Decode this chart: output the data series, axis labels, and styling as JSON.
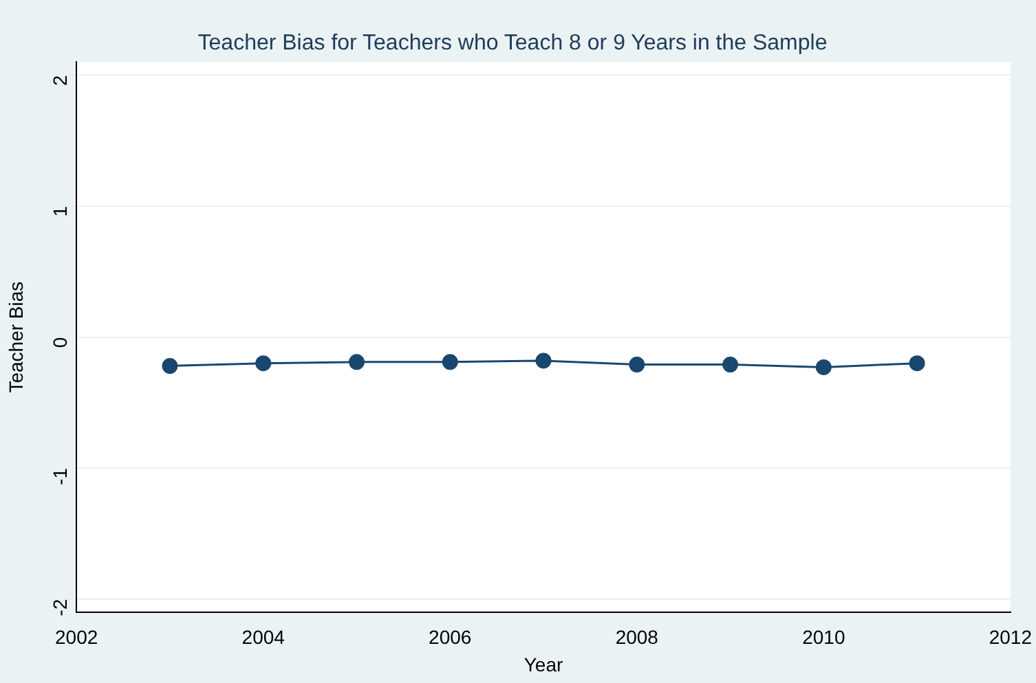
{
  "chart_data": {
    "type": "line",
    "title": "Teacher Bias for Teachers who Teach 8 or 9 Years in the Sample",
    "xlabel": "Year",
    "ylabel": "Teacher Bias",
    "x": [
      2003,
      2004,
      2005,
      2006,
      2007,
      2008,
      2009,
      2010,
      2011
    ],
    "series": [
      {
        "color": "#1a476f",
        "values": [
          -0.22,
          -0.2,
          -0.19,
          -0.19,
          -0.18,
          -0.21,
          -0.21,
          -0.23,
          -0.2
        ]
      }
    ],
    "xlim": [
      2002,
      2012
    ],
    "xticks": [
      2002,
      2004,
      2006,
      2008,
      2010,
      2012
    ],
    "ylim": [
      -2.1,
      2.1
    ],
    "yticks": [
      -2,
      -1,
      0,
      1,
      2
    ],
    "grid": "y",
    "marker": "circle",
    "legend": false
  }
}
